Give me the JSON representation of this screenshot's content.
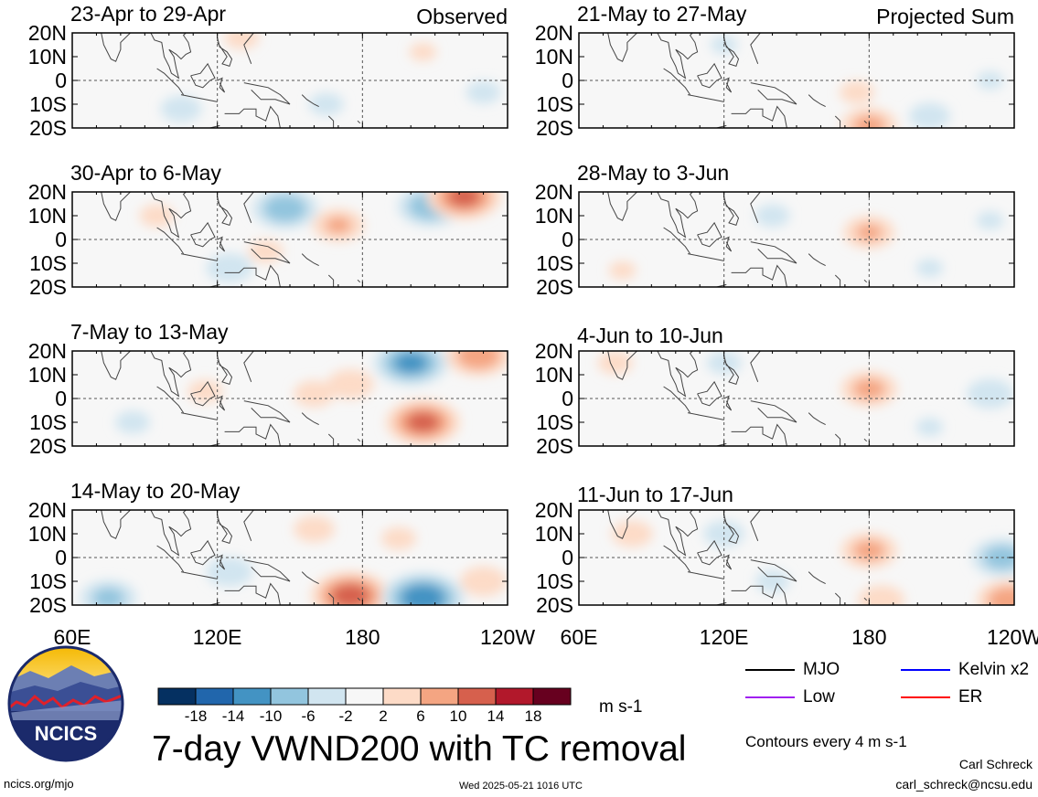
{
  "figure": {
    "main_title": "7-day VWND200 with TC removal",
    "observed_label": "Observed",
    "projected_label": "Projected Sum",
    "url": "ncics.org/mjo",
    "timestamp": "Wed 2025-05-21 1016 UTC",
    "author": "Carl Schreck",
    "email": "carl_schreck@ncsu.edu",
    "logo_text": "NCICS",
    "units": "m s-1",
    "contours_note": "Contours every 4 m s-1"
  },
  "legend": {
    "items": [
      {
        "label": "MJO",
        "color": "#000000"
      },
      {
        "label": "Kelvin x2",
        "color": "#0000ff"
      },
      {
        "label": "Low",
        "color": "#a020f0"
      },
      {
        "label": "ER",
        "color": "#ff0000"
      }
    ]
  },
  "colorbar": {
    "labels": [
      "-18",
      "-14",
      "-10",
      "-6",
      "-2",
      "2",
      "6",
      "10",
      "14",
      "18"
    ],
    "colors": [
      "#053061",
      "#2166ac",
      "#4393c3",
      "#92c5de",
      "#d1e5f0",
      "#f7f7f7",
      "#fddbc7",
      "#f4a582",
      "#d6604d",
      "#b2182b",
      "#67001f"
    ]
  },
  "chart_data": {
    "type": "heatmap",
    "variable": "VWND200",
    "units": "m s-1",
    "x_ticks": [
      "60E",
      "120E",
      "180",
      "120W"
    ],
    "y_ticks": [
      "20N",
      "10N",
      "0",
      "10S",
      "20S"
    ],
    "xlim": [
      60,
      240
    ],
    "ylim": [
      -20,
      20
    ],
    "panels": [
      {
        "title": "23-Apr to 29-Apr",
        "type": "Observed",
        "blobs": [
          {
            "lon": 105,
            "lat": -12,
            "v": -5
          },
          {
            "lon": 130,
            "lat": 18,
            "v": 4
          },
          {
            "lon": 165,
            "lat": -10,
            "v": -4
          },
          {
            "lon": 205,
            "lat": 12,
            "v": 3
          },
          {
            "lon": 230,
            "lat": -5,
            "v": -4
          }
        ]
      },
      {
        "title": "30-Apr to 6-May",
        "type": "Observed",
        "blobs": [
          {
            "lon": 148,
            "lat": 13,
            "v": -10
          },
          {
            "lon": 208,
            "lat": 14,
            "v": -10
          },
          {
            "lon": 222,
            "lat": 18,
            "v": 12
          },
          {
            "lon": 170,
            "lat": 6,
            "v": 7
          },
          {
            "lon": 125,
            "lat": -12,
            "v": -6
          },
          {
            "lon": 140,
            "lat": -5,
            "v": 4
          },
          {
            "lon": 95,
            "lat": 10,
            "v": 4
          }
        ]
      },
      {
        "title": "7-May to 13-May",
        "type": "Observed",
        "blobs": [
          {
            "lon": 200,
            "lat": 15,
            "v": -12
          },
          {
            "lon": 228,
            "lat": 18,
            "v": 10
          },
          {
            "lon": 205,
            "lat": -10,
            "v": 12
          },
          {
            "lon": 175,
            "lat": 6,
            "v": 6
          },
          {
            "lon": 160,
            "lat": 2,
            "v": 5
          },
          {
            "lon": 85,
            "lat": -10,
            "v": -4
          },
          {
            "lon": 115,
            "lat": 3,
            "v": 4
          }
        ]
      },
      {
        "title": "14-May to 20-May",
        "type": "Observed",
        "blobs": [
          {
            "lon": 175,
            "lat": -16,
            "v": 13
          },
          {
            "lon": 205,
            "lat": -17,
            "v": -14
          },
          {
            "lon": 160,
            "lat": 12,
            "v": 5
          },
          {
            "lon": 75,
            "lat": -17,
            "v": -8
          },
          {
            "lon": 125,
            "lat": -6,
            "v": -6
          },
          {
            "lon": 230,
            "lat": -10,
            "v": 6
          },
          {
            "lon": 195,
            "lat": 8,
            "v": 4
          }
        ]
      },
      {
        "title": "21-May to 27-May",
        "type": "Projected Sum",
        "blobs": [
          {
            "lon": 175,
            "lat": -5,
            "v": 4
          },
          {
            "lon": 180,
            "lat": -19,
            "v": 8
          },
          {
            "lon": 205,
            "lat": -15,
            "v": -5
          },
          {
            "lon": 120,
            "lat": 15,
            "v": -3
          },
          {
            "lon": 230,
            "lat": 0,
            "v": -3
          }
        ]
      },
      {
        "title": "28-May to 3-Jun",
        "type": "Projected Sum",
        "blobs": [
          {
            "lon": 180,
            "lat": 3,
            "v": 7
          },
          {
            "lon": 140,
            "lat": 10,
            "v": -4
          },
          {
            "lon": 205,
            "lat": -12,
            "v": -3
          },
          {
            "lon": 230,
            "lat": 8,
            "v": -3
          },
          {
            "lon": 78,
            "lat": -13,
            "v": 3
          }
        ]
      },
      {
        "title": "4-Jun to 10-Jun",
        "type": "Projected Sum",
        "blobs": [
          {
            "lon": 180,
            "lat": 4,
            "v": 8
          },
          {
            "lon": 230,
            "lat": 2,
            "v": -6
          },
          {
            "lon": 75,
            "lat": 15,
            "v": 4
          },
          {
            "lon": 120,
            "lat": 15,
            "v": -4
          },
          {
            "lon": 205,
            "lat": -12,
            "v": -3
          }
        ]
      },
      {
        "title": "11-Jun to 17-Jun",
        "type": "Projected Sum",
        "blobs": [
          {
            "lon": 180,
            "lat": 3,
            "v": 8
          },
          {
            "lon": 235,
            "lat": 0,
            "v": -9
          },
          {
            "lon": 82,
            "lat": 10,
            "v": 5
          },
          {
            "lon": 120,
            "lat": 10,
            "v": -5
          },
          {
            "lon": 238,
            "lat": -18,
            "v": 10
          },
          {
            "lon": 185,
            "lat": -18,
            "v": 6
          },
          {
            "lon": 140,
            "lat": -10,
            "v": -4
          }
        ]
      }
    ]
  }
}
